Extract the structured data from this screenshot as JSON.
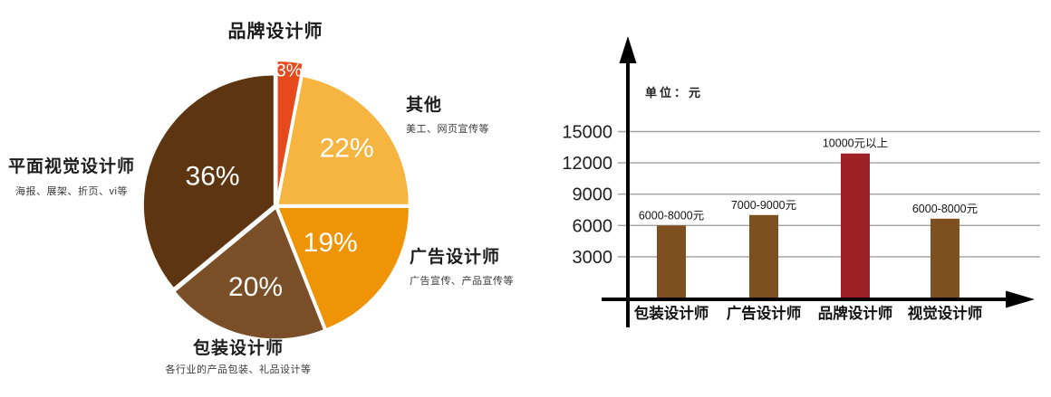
{
  "chart_data": [
    {
      "type": "pie",
      "direction": "clockwise",
      "start_angle_deg": 0,
      "percent_label_color": "#ffffff",
      "legend": "none",
      "slices": [
        {
          "label": "品牌设计师",
          "sublabel": "",
          "value": 3,
          "display": "3%",
          "color": "#e6491c"
        },
        {
          "label": "其他",
          "sublabel": "美工、网页宣传等",
          "value": 22,
          "display": "22%",
          "color": "#f5b540"
        },
        {
          "label": "广告设计师",
          "sublabel": "广告宣传、产品宣传等",
          "value": 19,
          "display": "19%",
          "color": "#ef9407"
        },
        {
          "label": "包装设计师",
          "sublabel": "各行业的产品包装、礼品设计等",
          "value": 20,
          "display": "20%",
          "color": "#7a4e26"
        },
        {
          "label": "平面视觉设计师",
          "sublabel": "海报、展架、折页、vi等",
          "value": 36,
          "display": "36%",
          "color": "#5d3611"
        }
      ]
    },
    {
      "type": "bar",
      "unit_label": "单位：元",
      "categories": [
        "包装设计师",
        "广告设计师",
        "品牌设计师",
        "视觉设计师"
      ],
      "values": [
        6000,
        7000,
        12900,
        6650
      ],
      "value_labels": [
        "6000-8000元",
        "7000-9000元",
        "10000元以上",
        "6000-8000元"
      ],
      "bar_colors": [
        "#7f501f",
        "#7f501f",
        "#9e2127",
        "#7f501f"
      ],
      "y_ticks": [
        3000,
        6000,
        9000,
        12000,
        15000
      ],
      "ylim": [
        0,
        16500
      ],
      "grid": true,
      "grid_color": "#a0a0a0",
      "axis_color": "#000000",
      "xlabel": "",
      "ylabel": ""
    }
  ]
}
